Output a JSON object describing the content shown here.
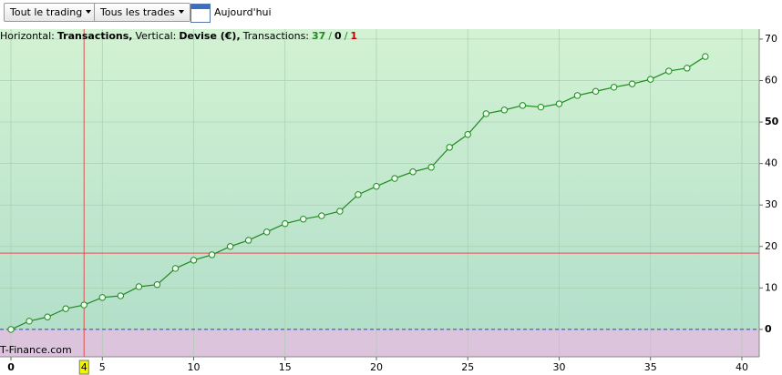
{
  "toolbar": {
    "range": "Tout le trading",
    "trades": "Tous les trades",
    "date": "Aujourd'hui"
  },
  "chart_data": {
    "type": "line",
    "info": [
      "Horizontal:",
      "Transactions,",
      "Vertical:",
      "Devise (€),",
      "Transactions:",
      "37",
      "/",
      "0",
      "/",
      "1"
    ],
    "watermark": "T-Finance.com",
    "x": [
      0,
      1,
      2,
      3,
      4,
      5,
      6,
      7,
      8,
      9,
      10,
      11,
      12,
      13,
      14,
      15,
      16,
      17,
      18,
      19,
      20,
      21,
      22,
      23,
      24,
      25,
      26,
      27,
      28,
      29,
      30,
      31,
      32,
      33,
      34,
      35,
      36,
      37,
      38
    ],
    "series": [
      {
        "name": "Devise (€)",
        "color": "#1f8a1f",
        "values": [
          0,
          2,
          3,
          5,
          5.9,
          7.7,
          8.1,
          10.3,
          10.8,
          14.7,
          16.7,
          18,
          20,
          21.5,
          23.5,
          25.5,
          26.6,
          27.4,
          28.5,
          32.5,
          34.5,
          36.4,
          38,
          39.1,
          43.9,
          47,
          52,
          52.9,
          54,
          53.6,
          54.4,
          56.4,
          57.4,
          58.4,
          59.2,
          60.3,
          62.3,
          63,
          65.8
        ]
      }
    ],
    "xlim": [
      -0.6,
      40.95
    ],
    "xticks": [
      0,
      5,
      10,
      15,
      20,
      25,
      30,
      35,
      40
    ],
    "ylim": [
      -6.6,
      72.4
    ],
    "yticks": [
      0,
      10,
      20,
      30,
      40,
      50,
      60,
      70
    ],
    "cursor_x": 4,
    "cursor_y": 18.4,
    "grid": true
  }
}
